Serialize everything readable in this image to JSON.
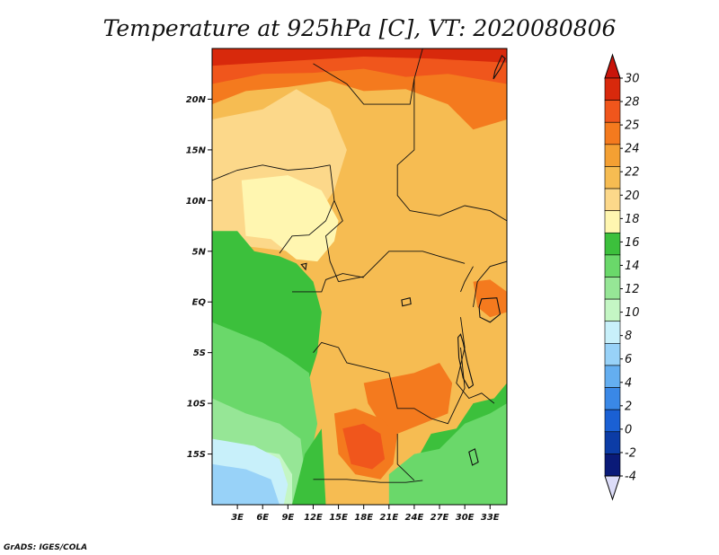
{
  "title": "Temperature at 925hPa [C], VT: 2020080806",
  "credit": "GrADS: IGES/COLA",
  "map": {
    "lon_range": [
      0,
      35
    ],
    "lat_range": [
      -20,
      25
    ],
    "lat_ticks": [
      {
        "value": 20,
        "label": "20N"
      },
      {
        "value": 15,
        "label": "15N"
      },
      {
        "value": 10,
        "label": "10N"
      },
      {
        "value": 5,
        "label": "5N"
      },
      {
        "value": 0,
        "label": "EQ"
      },
      {
        "value": -5,
        "label": "5S"
      },
      {
        "value": -10,
        "label": "10S"
      },
      {
        "value": -15,
        "label": "15S"
      }
    ],
    "lon_ticks": [
      {
        "value": 3,
        "label": "3E"
      },
      {
        "value": 6,
        "label": "6E"
      },
      {
        "value": 9,
        "label": "9E"
      },
      {
        "value": 12,
        "label": "12E"
      },
      {
        "value": 15,
        "label": "15E"
      },
      {
        "value": 18,
        "label": "18E"
      },
      {
        "value": 21,
        "label": "21E"
      },
      {
        "value": 24,
        "label": "24E"
      },
      {
        "value": 27,
        "label": "27E"
      },
      {
        "value": 30,
        "label": "30E"
      },
      {
        "value": 33,
        "label": "33E"
      }
    ]
  },
  "colorbar": {
    "labels": [
      "30",
      "28",
      "25",
      "24",
      "22",
      "20",
      "18",
      "16",
      "14",
      "12",
      "10",
      "8",
      "6",
      "4",
      "2",
      "0",
      "-2",
      "-4"
    ],
    "colors": [
      "#d8290c",
      "#f0561c",
      "#f47a1e",
      "#f4a033",
      "#f6bc52",
      "#fcd88a",
      "#fff6b0",
      "#3cc03c",
      "#6ad86a",
      "#96e696",
      "#c4f6c4",
      "#c8f0fa",
      "#98d2f8",
      "#64aef0",
      "#3a88e6",
      "#1a60d4",
      "#0c3ca6",
      "#0a1a78"
    ],
    "top_color": "#c8140a",
    "bottom_color": "#dcdcf8"
  },
  "fields": {
    "background": "#f6bc52",
    "zones": [
      {
        "level": 20,
        "color": "#fcd88a",
        "pts": [
          [
            0,
            13
          ],
          [
            0,
            18
          ],
          [
            6,
            19
          ],
          [
            10,
            21
          ],
          [
            14,
            19
          ],
          [
            16,
            15
          ],
          [
            14.5,
            11
          ],
          [
            12,
            8
          ],
          [
            9,
            5
          ],
          [
            4,
            5.5
          ],
          [
            0,
            6
          ]
        ]
      },
      {
        "level": 18,
        "color": "#fff6b0",
        "pts": [
          [
            3.5,
            12
          ],
          [
            9,
            12.5
          ],
          [
            13,
            11
          ],
          [
            15,
            8
          ],
          [
            14.5,
            6
          ],
          [
            12.5,
            4
          ],
          [
            10,
            4.2
          ],
          [
            7,
            6.2
          ],
          [
            4,
            6.5
          ]
        ]
      },
      {
        "level": 16,
        "color": "#3cc03c",
        "pts": [
          [
            0,
            7
          ],
          [
            3,
            7
          ],
          [
            5,
            5
          ],
          [
            8,
            4.5
          ],
          [
            10,
            3.8
          ],
          [
            12,
            2
          ],
          [
            13,
            -1
          ],
          [
            12.5,
            -5
          ],
          [
            11,
            -9
          ],
          [
            6,
            -11
          ],
          [
            2,
            -10
          ],
          [
            0,
            -8
          ]
        ]
      },
      {
        "level": 14,
        "color": "#6ad86a",
        "pts": [
          [
            0,
            -2
          ],
          [
            3,
            -3
          ],
          [
            6,
            -4
          ],
          [
            9,
            -5.5
          ],
          [
            11.5,
            -7
          ],
          [
            12.5,
            -12
          ],
          [
            11.5,
            -16
          ],
          [
            10,
            -20
          ],
          [
            0,
            -20
          ]
        ]
      },
      {
        "level": 12,
        "color": "#96e696",
        "pts": [
          [
            0,
            -9.5
          ],
          [
            4,
            -11
          ],
          [
            8,
            -12
          ],
          [
            10.5,
            -13.5
          ],
          [
            11,
            -17
          ],
          [
            10.5,
            -20
          ],
          [
            0,
            -20
          ]
        ]
      },
      {
        "level": 10,
        "color": "#c4f6c4",
        "pts": [
          [
            0,
            -14
          ],
          [
            4,
            -14.5
          ],
          [
            8,
            -15
          ],
          [
            9.5,
            -17
          ],
          [
            9.5,
            -20
          ],
          [
            0,
            -20
          ]
        ]
      },
      {
        "level": 8,
        "color": "#c8f0fa",
        "pts": [
          [
            0,
            -13.5
          ],
          [
            5,
            -14.2
          ],
          [
            8,
            -15.5
          ],
          [
            9,
            -18
          ],
          [
            8.5,
            -20
          ],
          [
            0,
            -20
          ]
        ]
      },
      {
        "level": 6,
        "color": "#98d2f8",
        "pts": [
          [
            0,
            -16
          ],
          [
            4,
            -16.5
          ],
          [
            7,
            -17.5
          ],
          [
            8,
            -20
          ],
          [
            0,
            -20
          ]
        ]
      },
      {
        "level": 25,
        "color": "#f47a1e",
        "pts": [
          [
            0,
            19.5
          ],
          [
            4,
            20.8
          ],
          [
            9,
            21.2
          ],
          [
            14,
            21.8
          ],
          [
            18,
            20.8
          ],
          [
            23,
            21
          ],
          [
            28,
            19.5
          ],
          [
            31,
            17
          ],
          [
            35,
            18
          ],
          [
            35,
            25
          ],
          [
            0,
            25
          ]
        ]
      },
      {
        "level": 28,
        "color": "#f0561c",
        "pts": [
          [
            0,
            21.5
          ],
          [
            6,
            22.5
          ],
          [
            12,
            22.6
          ],
          [
            18,
            23
          ],
          [
            23,
            22.2
          ],
          [
            28,
            22.5
          ],
          [
            35,
            21.5
          ],
          [
            35,
            25
          ],
          [
            0,
            25
          ]
        ]
      },
      {
        "level": 30,
        "color": "#d8290c",
        "pts": [
          [
            0,
            23.3
          ],
          [
            10,
            23.8
          ],
          [
            18,
            24.2
          ],
          [
            26,
            24
          ],
          [
            35,
            23.6
          ],
          [
            35,
            25
          ],
          [
            0,
            25
          ]
        ]
      },
      {
        "level": 25,
        "color": "#f47a1e",
        "pts": [
          [
            18,
            -8
          ],
          [
            21,
            -7.5
          ],
          [
            24,
            -7
          ],
          [
            27,
            -6
          ],
          [
            28.5,
            -8
          ],
          [
            28,
            -11
          ],
          [
            25,
            -12
          ],
          [
            22,
            -13
          ],
          [
            20,
            -12
          ],
          [
            18.5,
            -10
          ]
        ]
      },
      {
        "level": 25,
        "color": "#f47a1e",
        "pts": [
          [
            14.5,
            -11
          ],
          [
            17,
            -10.5
          ],
          [
            20,
            -11.5
          ],
          [
            22,
            -13
          ],
          [
            21.5,
            -16
          ],
          [
            20,
            -17.5
          ],
          [
            17,
            -17
          ],
          [
            15,
            -15
          ]
        ]
      },
      {
        "level": 28,
        "color": "#f0561c",
        "pts": [
          [
            15.5,
            -12.5
          ],
          [
            18,
            -12
          ],
          [
            20,
            -13
          ],
          [
            20.5,
            -15.5
          ],
          [
            19,
            -16.5
          ],
          [
            16.5,
            -16
          ]
        ]
      },
      {
        "level": 16,
        "color": "#3cc03c",
        "pts": [
          [
            24,
            -16
          ],
          [
            26,
            -13
          ],
          [
            29,
            -12.5
          ],
          [
            31,
            -10
          ],
          [
            33.5,
            -9.5
          ],
          [
            35,
            -8
          ],
          [
            35,
            -20
          ],
          [
            24,
            -20
          ]
        ]
      },
      {
        "level": 14,
        "color": "#6ad86a",
        "pts": [
          [
            21,
            -17
          ],
          [
            24,
            -15
          ],
          [
            27,
            -14.5
          ],
          [
            30,
            -12
          ],
          [
            33,
            -11
          ],
          [
            35,
            -10
          ],
          [
            35,
            -20
          ],
          [
            21,
            -20
          ]
        ]
      },
      {
        "level": 16,
        "color": "#3cc03c",
        "pts": [
          [
            9.5,
            -20
          ],
          [
            11,
            -15
          ],
          [
            13,
            -12.5
          ],
          [
            13.5,
            -20
          ]
        ]
      },
      {
        "level": 25,
        "color": "#f47a1e",
        "pts": [
          [
            31,
            2
          ],
          [
            33,
            2.2
          ],
          [
            35,
            1
          ],
          [
            35,
            -1
          ],
          [
            33,
            -1.5
          ],
          [
            31.5,
            -0.5
          ]
        ]
      }
    ],
    "borders": [
      [
        [
          0,
          12
        ],
        [
          3,
          13
        ],
        [
          6,
          13.5
        ],
        [
          9,
          13
        ],
        [
          12,
          13.2
        ],
        [
          14,
          13.5
        ]
      ],
      [
        [
          12,
          23.5
        ],
        [
          14,
          22.5
        ],
        [
          16,
          21.5
        ],
        [
          18,
          19.5
        ],
        [
          23.5,
          19.5
        ],
        [
          24,
          22
        ],
        [
          25,
          25
        ]
      ],
      [
        [
          14,
          13.5
        ],
        [
          14.5,
          10
        ],
        [
          15.5,
          8
        ],
        [
          13.5,
          6.5
        ],
        [
          14,
          4
        ],
        [
          15,
          2
        ]
      ],
      [
        [
          15,
          2
        ],
        [
          18,
          2.5
        ],
        [
          21,
          5
        ],
        [
          25,
          5
        ],
        [
          27,
          4.5
        ],
        [
          30,
          3.8
        ]
      ],
      [
        [
          24,
          22
        ],
        [
          24,
          15
        ],
        [
          22,
          13.5
        ],
        [
          22,
          10.5
        ],
        [
          23.5,
          9
        ],
        [
          27,
          8.5
        ],
        [
          30,
          9.5
        ],
        [
          33,
          9
        ],
        [
          35,
          8
        ]
      ],
      [
        [
          8,
          4.8
        ],
        [
          9.5,
          6.5
        ],
        [
          11.5,
          6.6
        ],
        [
          13.5,
          8
        ],
        [
          14.5,
          10
        ]
      ],
      [
        [
          9.5,
          1
        ],
        [
          13,
          1
        ],
        [
          13.5,
          2.2
        ],
        [
          15.5,
          2.8
        ],
        [
          18,
          2.4
        ]
      ],
      [
        [
          12,
          -5
        ],
        [
          13,
          -4
        ],
        [
          15,
          -4.5
        ],
        [
          16,
          -6
        ],
        [
          21,
          -7
        ],
        [
          22,
          -10.5
        ],
        [
          24,
          -10.5
        ],
        [
          26,
          -11.5
        ],
        [
          28,
          -12
        ],
        [
          30,
          -8.5
        ],
        [
          29.5,
          -4.5
        ]
      ],
      [
        [
          12,
          -17.5
        ],
        [
          16,
          -17.5
        ],
        [
          20,
          -17.8
        ],
        [
          23,
          -17.8
        ],
        [
          25,
          -17.6
        ]
      ],
      [
        [
          22,
          -13
        ],
        [
          22,
          -16
        ],
        [
          24,
          -17.6
        ]
      ],
      [
        [
          29.5,
          -1.5
        ],
        [
          30,
          -4.5
        ],
        [
          29,
          -8
        ],
        [
          30.5,
          -9.5
        ],
        [
          32,
          -9
        ],
        [
          33.5,
          -10
        ]
      ],
      [
        [
          29.5,
          1
        ],
        [
          30,
          2
        ],
        [
          31,
          3.5
        ]
      ],
      [
        [
          31,
          -0.5
        ],
        [
          31.5,
          2
        ],
        [
          33,
          3.5
        ],
        [
          35,
          4
        ]
      ]
    ],
    "lakes": [
      [
        [
          29.2,
          -3.5
        ],
        [
          29.3,
          -5.5
        ],
        [
          29.8,
          -7.5
        ],
        [
          30.5,
          -8.5
        ],
        [
          31,
          -8.2
        ],
        [
          30.3,
          -6
        ],
        [
          29.8,
          -4
        ],
        [
          29.5,
          -3.2
        ]
      ],
      [
        [
          32,
          0.3
        ],
        [
          33.8,
          0.4
        ],
        [
          34.2,
          -1.2
        ],
        [
          33,
          -2
        ],
        [
          31.8,
          -1.5
        ],
        [
          31.7,
          -0.5
        ]
      ],
      [
        [
          30.5,
          -14.8
        ],
        [
          31.2,
          -14.5
        ],
        [
          31.6,
          -15.8
        ],
        [
          30.9,
          -16.1
        ]
      ],
      [
        [
          33.4,
          22
        ],
        [
          34.2,
          23
        ],
        [
          34.8,
          24
        ],
        [
          34.4,
          24.3
        ],
        [
          33.6,
          22.8
        ]
      ],
      [
        [
          22.5,
          0.2
        ],
        [
          23.5,
          0.4
        ],
        [
          23.6,
          -0.2
        ],
        [
          22.6,
          -0.4
        ]
      ],
      [
        [
          10.6,
          3.7
        ],
        [
          11.2,
          3.8
        ],
        [
          11.1,
          3.2
        ]
      ]
    ]
  }
}
